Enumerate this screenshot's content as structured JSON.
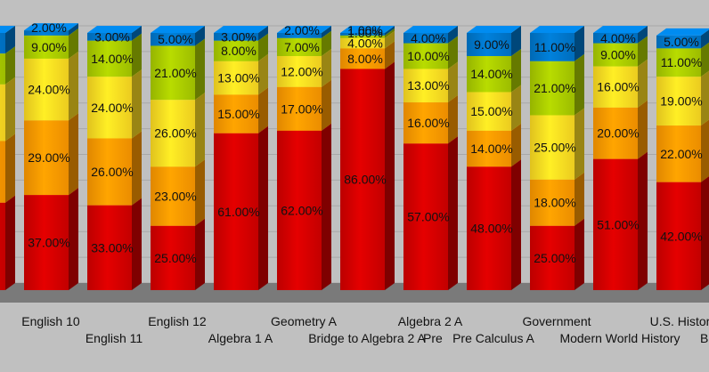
{
  "chart_data": {
    "type": "bar",
    "stacked": true,
    "percent_stacked": true,
    "three_d": true,
    "grid": true,
    "ylim": [
      0,
      100
    ],
    "categories": [
      "",
      "English 10",
      "English 11",
      "English 12",
      "Algebra 1 A",
      "Geometry A",
      "Bridge to Algebra 2 A",
      "Algebra 2 A",
      "Pre Calculus A",
      "Government",
      "Modern World History",
      "U.S. History"
    ],
    "axis_label_fragments": [
      "Pre",
      "B"
    ],
    "series": [
      {
        "color": "#d40000",
        "values": [
          null,
          37,
          33,
          25,
          61,
          62,
          86,
          57,
          48,
          25,
          51,
          42
        ],
        "labels": [
          "",
          "37.00%",
          "33.00%",
          "25.00%",
          "61.00%",
          "62.00%",
          "86.00%",
          "57.00%",
          "48.00%",
          "25.00%",
          "51.00%",
          "42.00%"
        ]
      },
      {
        "color": "#ff9900",
        "values": [
          null,
          29,
          26,
          23,
          15,
          17,
          8,
          16,
          14,
          18,
          20,
          22
        ],
        "labels": [
          "",
          "29.00%",
          "26.00%",
          "23.00%",
          "15.00%",
          "17.00%",
          "8.00%",
          "16.00%",
          "14.00%",
          "18.00%",
          "20.00%",
          "22.00%"
        ]
      },
      {
        "color": "#ffdd22",
        "values": [
          null,
          24,
          24,
          26,
          13,
          12,
          4,
          13,
          15,
          25,
          16,
          19
        ],
        "labels": [
          "",
          "24.00%",
          "24.00%",
          "26.00%",
          "13.00%",
          "12.00%",
          "4.00%",
          "13.00%",
          "15.00%",
          "25.00%",
          "16.00%",
          "19.00%"
        ]
      },
      {
        "color": "#aacc00",
        "values": [
          null,
          9,
          14,
          21,
          8,
          7,
          1,
          10,
          14,
          21,
          9,
          11
        ],
        "labels": [
          "",
          "9.00%",
          "14.00%",
          "21.00%",
          "8.00%",
          "7.00%",
          "1.00%",
          "10.00%",
          "14.00%",
          "21.00%",
          "9.00%",
          "11.00%"
        ]
      },
      {
        "color": "#0077cc",
        "values": [
          null,
          2,
          3,
          5,
          3,
          2,
          1,
          4,
          9,
          11,
          4,
          5
        ],
        "labels": [
          "",
          "2.00%",
          "3.00%",
          "5.00%",
          "3.00%",
          "2.00%",
          "1.00%",
          "4.00%",
          "9.00%",
          "11.00%",
          "4.00%",
          "5.00%"
        ]
      }
    ]
  }
}
